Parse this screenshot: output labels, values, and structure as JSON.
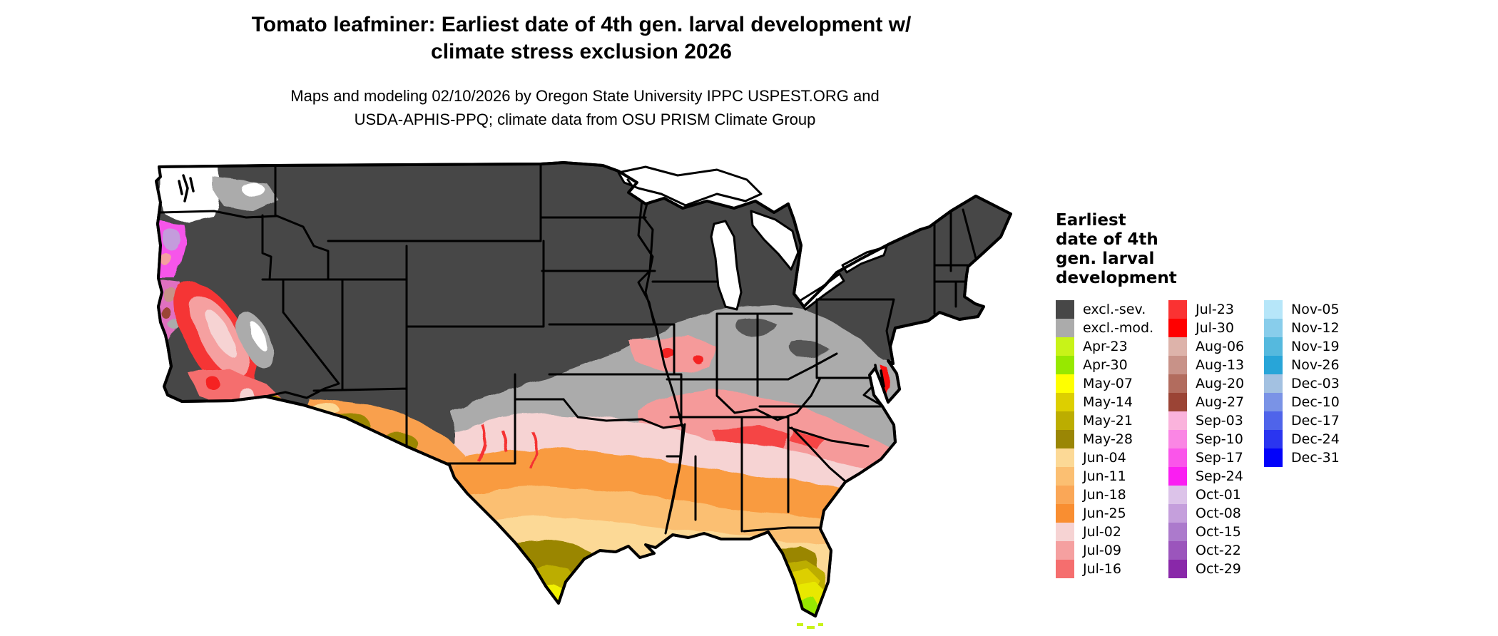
{
  "title": {
    "line1": "Tomato leafminer: Earliest date of 4th gen. larval development w/",
    "line2": "climate stress exclusion 2026"
  },
  "subtitle": {
    "line1": "Maps and modeling 02/10/2026 by Oregon State University IPPC USPEST.ORG and",
    "line2": "USDA-APHIS-PPQ; climate data from OSU PRISM Climate Group"
  },
  "legend": {
    "title": "Earliest\ndate of 4th\ngen. larval\ndevelopment",
    "columns": [
      [
        {
          "label": "excl.-sev.",
          "color": "#474747"
        },
        {
          "label": "excl.-mod.",
          "color": "#ababab"
        },
        {
          "label": "Apr-23",
          "color": "#c8f318"
        },
        {
          "label": "Apr-30",
          "color": "#97e800"
        },
        {
          "label": "May-07",
          "color": "#ffff00"
        },
        {
          "label": "May-14",
          "color": "#ddcf00"
        },
        {
          "label": "May-21",
          "color": "#bcad00"
        },
        {
          "label": "May-28",
          "color": "#9a8605"
        },
        {
          "label": "Jun-04",
          "color": "#fcd996"
        },
        {
          "label": "Jun-11",
          "color": "#fbbf72"
        },
        {
          "label": "Jun-18",
          "color": "#faa757"
        },
        {
          "label": "Jun-25",
          "color": "#f98e31"
        },
        {
          "label": "Jul-02",
          "color": "#f6d3d3"
        },
        {
          "label": "Jul-09",
          "color": "#f5a0a0"
        },
        {
          "label": "Jul-16",
          "color": "#f56e6e"
        }
      ],
      [
        {
          "label": "Jul-23",
          "color": "#fa3232"
        },
        {
          "label": "Jul-30",
          "color": "#ff0000"
        },
        {
          "label": "Aug-06",
          "color": "#ddb3aa"
        },
        {
          "label": "Aug-13",
          "color": "#c89288"
        },
        {
          "label": "Aug-20",
          "color": "#b26c5e"
        },
        {
          "label": "Aug-27",
          "color": "#9b4435"
        },
        {
          "label": "Sep-03",
          "color": "#fab3dc"
        },
        {
          "label": "Sep-10",
          "color": "#fa86e4"
        },
        {
          "label": "Sep-17",
          "color": "#fa55ea"
        },
        {
          "label": "Sep-24",
          "color": "#fa1ef2"
        },
        {
          "label": "Oct-01",
          "color": "#dcc3e9"
        },
        {
          "label": "Oct-08",
          "color": "#c59fdc"
        },
        {
          "label": "Oct-15",
          "color": "#ac7acc"
        },
        {
          "label": "Oct-22",
          "color": "#9b55bc"
        },
        {
          "label": "Oct-29",
          "color": "#8928a9"
        }
      ],
      [
        {
          "label": "Nov-05",
          "color": "#b6e6f9"
        },
        {
          "label": "Nov-12",
          "color": "#88cdeb"
        },
        {
          "label": "Nov-19",
          "color": "#55b9de"
        },
        {
          "label": "Nov-26",
          "color": "#28a5d8"
        },
        {
          "label": "Dec-03",
          "color": "#a3c1e1"
        },
        {
          "label": "Dec-10",
          "color": "#7a93e6"
        },
        {
          "label": "Dec-17",
          "color": "#4f64ea"
        },
        {
          "label": "Dec-24",
          "color": "#2a35f0"
        },
        {
          "label": "Dec-31",
          "color": "#0202fa"
        }
      ]
    ]
  },
  "map": {
    "type": "us-choropleth",
    "base_exclusion_color": "#474747",
    "moderate_exclusion_color": "#ababab",
    "regions": [
      {
        "area": "Northern and interior US, Rockies, Appalachians, Northeast",
        "value": "excl.-sev."
      },
      {
        "area": "Mid-latitude band (Kentucky, Tennessee, Virginia, north Texas, Great Basin edges)",
        "value": "excl.-mod."
      },
      {
        "area": "Northern Gulf states, Carolinas piedmont, Oklahoma",
        "value": "Jul-02 to Jul-23"
      },
      {
        "area": "Central Texas, Gulf coastal plain, Georgia, South Carolina coast",
        "value": "Jun-04 to Jun-25"
      },
      {
        "area": "South Texas and central Florida",
        "value": "May-07 to May-28"
      },
      {
        "area": "Southern tip of Texas and south Florida",
        "value": "Apr-23 to May-07"
      },
      {
        "area": "California Central Valley and south coast",
        "value": "Jul-16 to Jul-30 ring with Jul-02/Jul-09 core"
      },
      {
        "area": "Oregon and north California coast",
        "value": "Sep-Oct (magenta/purple)"
      },
      {
        "area": "Western Washington",
        "value": "no shading (white) with excl.-mod. patches"
      },
      {
        "area": "Delmarva coastal sliver",
        "value": "Jul-30 (red)"
      },
      {
        "area": "Southwest Arizona",
        "value": "Jun with May-28 olive patches"
      }
    ]
  }
}
